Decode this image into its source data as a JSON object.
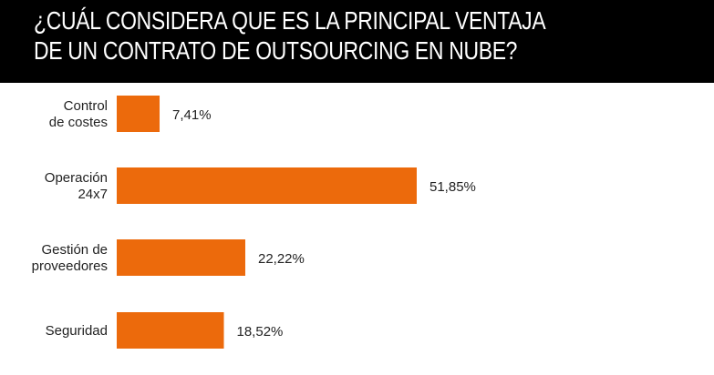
{
  "title": {
    "line1": "¿CUÁL CONSIDERA QUE ES LA PRINCIPAL VENTAJA",
    "line2": "DE UN CONTRATO DE OUTSOURCING EN NUBE?"
  },
  "colors": {
    "bar": "#ec6a0c",
    "title_bg": "#000000",
    "title_text": "#ffffff"
  },
  "chart_data": {
    "type": "bar",
    "orientation": "horizontal",
    "title": "¿CUÁL CONSIDERA QUE ES LA PRINCIPAL VENTAJA DE UN CONTRATO DE OUTSOURCING EN NUBE?",
    "categories": [
      [
        "Control",
        "de costes"
      ],
      [
        "Operación",
        "24x7"
      ],
      [
        "Gestión de",
        "proveedores"
      ],
      [
        "Seguridad"
      ]
    ],
    "values": [
      7.41,
      51.85,
      22.22,
      18.52
    ],
    "value_labels": [
      "7,41%",
      "51,85%",
      "22,22%",
      "18,52%"
    ],
    "xlim": [
      0,
      51.85
    ],
    "grid": false,
    "legend": "none"
  }
}
